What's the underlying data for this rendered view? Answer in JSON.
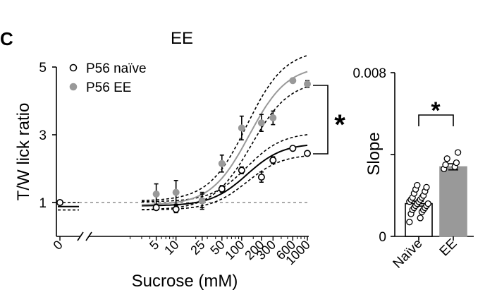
{
  "panel_label": "C",
  "chart_data": [
    {
      "type": "scatter",
      "title": "EE",
      "xlabel": "Sucrose (mM)",
      "ylabel": "T/W lick ratio",
      "x_scale": "log (broken axis at 0)",
      "x_ticks": [
        "0",
        "5",
        "10",
        "25",
        "50",
        "100",
        "200",
        "300",
        "600",
        "1000"
      ],
      "y_ticks": [
        "1",
        "3",
        "5"
      ],
      "ylim": [
        0.2,
        5
      ],
      "reference_line": 1,
      "legend_position": "top-left",
      "significance": "*",
      "series": [
        {
          "name": "P56 naïve",
          "marker": "open circle",
          "color": "#000000",
          "points": [
            {
              "x": 0,
              "y": 1.0,
              "err": 0.05
            },
            {
              "x": 5,
              "y": 0.85,
              "err": 0.05
            },
            {
              "x": 10,
              "y": 0.8,
              "err": 0.1
            },
            {
              "x": 25,
              "y": 1.05,
              "err": 0.2
            },
            {
              "x": 50,
              "y": 1.4,
              "err": 0.1
            },
            {
              "x": 100,
              "y": 1.95,
              "err": 0.1
            },
            {
              "x": 200,
              "y": 1.75,
              "err": 0.15
            },
            {
              "x": 300,
              "y": 2.25,
              "err": 0.1
            },
            {
              "x": 600,
              "y": 2.6,
              "err": 0.05
            },
            {
              "x": 1000,
              "y": 2.45,
              "err": 0.05
            }
          ]
        },
        {
          "name": "P56 EE",
          "marker": "filled circle",
          "color": "#999999",
          "points": [
            {
              "x": 5,
              "y": 1.25,
              "err": 0.3
            },
            {
              "x": 10,
              "y": 1.3,
              "err": 0.35
            },
            {
              "x": 25,
              "y": 1.05,
              "err": 0.25
            },
            {
              "x": 50,
              "y": 2.15,
              "err": 0.25
            },
            {
              "x": 100,
              "y": 3.2,
              "err": 0.35
            },
            {
              "x": 200,
              "y": 3.35,
              "err": 0.25
            },
            {
              "x": 300,
              "y": 3.5,
              "err": 0.2
            },
            {
              "x": 600,
              "y": 4.6,
              "err": 0.05
            },
            {
              "x": 1000,
              "y": 4.5,
              "err": 0.1
            }
          ]
        }
      ]
    },
    {
      "type": "bar",
      "ylabel": "Slope",
      "categories": [
        "Naïve",
        "EE"
      ],
      "values": [
        0.0016,
        0.0034
      ],
      "errors": [
        0.00012,
        0.00015
      ],
      "ylim": [
        0,
        0.008
      ],
      "y_ticks": [
        "0",
        "0.008"
      ],
      "colors": [
        "#ffffff",
        "#999999"
      ],
      "significance": "*",
      "individual_points": [
        [
          0.0007,
          0.0009,
          0.0011,
          0.0012,
          0.0013,
          0.0013,
          0.0014,
          0.0014,
          0.0015,
          0.0015,
          0.0016,
          0.0016,
          0.0017,
          0.0017,
          0.0018,
          0.0018,
          0.0019,
          0.0019,
          0.002,
          0.0021,
          0.0022,
          0.0023,
          0.0024,
          0.0025
        ],
        [
          0.0033,
          0.0034,
          0.0035,
          0.0036,
          0.0038,
          0.0041
        ]
      ]
    }
  ]
}
